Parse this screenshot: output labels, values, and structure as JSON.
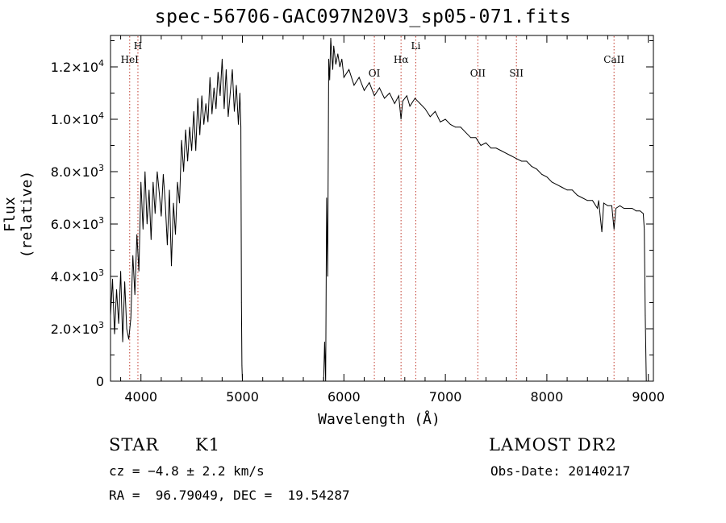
{
  "page": {
    "title": "spec-56706-GAC097N20V3_sp05-071.fits",
    "info": {
      "class_label": "STAR",
      "subclass_label": "K1",
      "survey": "LAMOST DR2",
      "cz": "cz = −4.8 ± 2.2 km/s",
      "obs_date": "Obs-Date: 20140217",
      "coords": "RA =  96.79049, DEC =  19.54287"
    }
  },
  "chart_data": {
    "type": "line",
    "title": "spec-56706-GAC097N20V3_sp05-071.fits",
    "xlabel": "Wavelength (Å)",
    "ylabel": "Flux (relative)",
    "xlim": [
      3700,
      9050
    ],
    "ylim": [
      0,
      13200
    ],
    "xticks": [
      4000,
      5000,
      6000,
      7000,
      8000,
      9000
    ],
    "xtick_labels": [
      "4000",
      "5000",
      "6000",
      "7000",
      "8000",
      "9000"
    ],
    "yticks": [
      0,
      2000,
      4000,
      6000,
      8000,
      10000,
      12000
    ],
    "ytick_labels": [
      {
        "mantissa": "0",
        "exp": ""
      },
      {
        "mantissa": "2.0×10",
        "exp": "3"
      },
      {
        "mantissa": "4.0×10",
        "exp": "3"
      },
      {
        "mantissa": "6.0×10",
        "exp": "3"
      },
      {
        "mantissa": "8.0×10",
        "exp": "3"
      },
      {
        "mantissa": "1.0×10",
        "exp": "4"
      },
      {
        "mantissa": "1.2×10",
        "exp": "4"
      }
    ],
    "line_markers": [
      {
        "label": "HeI",
        "wavelength": 3889,
        "level": 2
      },
      {
        "label": "H",
        "wavelength": 3970,
        "level": 1
      },
      {
        "label": "OI",
        "wavelength": 6300,
        "level": 3
      },
      {
        "label": "Hα",
        "wavelength": 6563,
        "level": 2
      },
      {
        "label": "Li",
        "wavelength": 6708,
        "level": 1
      },
      {
        "label": "OII",
        "wavelength": 7320,
        "level": 3
      },
      {
        "label": "SII",
        "wavelength": 7700,
        "level": 3
      },
      {
        "label": "CaII",
        "wavelength": 8662,
        "level": 2
      }
    ],
    "marker_color": "#c0392b",
    "series": [
      {
        "points": [
          [
            3700,
            2500
          ],
          [
            3720,
            3900
          ],
          [
            3740,
            1800
          ],
          [
            3760,
            3500
          ],
          [
            3780,
            2200
          ],
          [
            3800,
            4200
          ],
          [
            3820,
            1500
          ],
          [
            3840,
            3800
          ],
          [
            3860,
            2000
          ],
          [
            3880,
            1600
          ],
          [
            3900,
            2400
          ],
          [
            3920,
            4800
          ],
          [
            3940,
            3300
          ],
          [
            3960,
            5600
          ],
          [
            3980,
            4200
          ],
          [
            4000,
            7600
          ],
          [
            4020,
            5800
          ],
          [
            4040,
            8000
          ],
          [
            4060,
            6000
          ],
          [
            4080,
            7300
          ],
          [
            4100,
            5400
          ],
          [
            4120,
            7600
          ],
          [
            4140,
            6400
          ],
          [
            4160,
            8000
          ],
          [
            4180,
            7200
          ],
          [
            4200,
            6300
          ],
          [
            4220,
            7900
          ],
          [
            4240,
            6800
          ],
          [
            4260,
            5200
          ],
          [
            4280,
            7300
          ],
          [
            4300,
            4400
          ],
          [
            4320,
            6800
          ],
          [
            4340,
            5600
          ],
          [
            4360,
            7600
          ],
          [
            4380,
            6800
          ],
          [
            4400,
            9200
          ],
          [
            4420,
            8000
          ],
          [
            4440,
            9600
          ],
          [
            4460,
            8400
          ],
          [
            4480,
            9700
          ],
          [
            4500,
            8800
          ],
          [
            4520,
            10300
          ],
          [
            4540,
            8800
          ],
          [
            4560,
            10800
          ],
          [
            4580,
            9400
          ],
          [
            4600,
            10900
          ],
          [
            4620,
            9800
          ],
          [
            4640,
            10600
          ],
          [
            4660,
            9900
          ],
          [
            4680,
            11600
          ],
          [
            4700,
            10200
          ],
          [
            4720,
            11200
          ],
          [
            4740,
            10400
          ],
          [
            4760,
            11800
          ],
          [
            4780,
            10900
          ],
          [
            4800,
            12300
          ],
          [
            4820,
            10400
          ],
          [
            4840,
            11900
          ],
          [
            4860,
            10100
          ],
          [
            4880,
            11000
          ],
          [
            4900,
            11900
          ],
          [
            4920,
            10300
          ],
          [
            4940,
            11300
          ],
          [
            4960,
            9800
          ],
          [
            4975,
            11000
          ],
          [
            4985,
            9700
          ],
          [
            4990,
            3000
          ],
          [
            4995,
            600
          ],
          [
            5000,
            0
          ],
          [
            5800,
            0
          ],
          [
            5810,
            1500
          ],
          [
            5820,
            0
          ],
          [
            5830,
            7000
          ],
          [
            5840,
            4000
          ],
          [
            5850,
            12300
          ],
          [
            5860,
            11500
          ],
          [
            5870,
            13100
          ],
          [
            5880,
            12500
          ],
          [
            5890,
            11900
          ],
          [
            5900,
            12800
          ],
          [
            5920,
            12100
          ],
          [
            5940,
            12500
          ],
          [
            5960,
            12000
          ],
          [
            5980,
            12300
          ],
          [
            6000,
            11600
          ],
          [
            6050,
            11900
          ],
          [
            6100,
            11300
          ],
          [
            6150,
            11600
          ],
          [
            6200,
            11100
          ],
          [
            6250,
            11400
          ],
          [
            6300,
            10900
          ],
          [
            6350,
            11200
          ],
          [
            6400,
            10800
          ],
          [
            6450,
            11000
          ],
          [
            6500,
            10600
          ],
          [
            6540,
            10900
          ],
          [
            6563,
            10000
          ],
          [
            6580,
            10700
          ],
          [
            6620,
            10900
          ],
          [
            6650,
            10500
          ],
          [
            6700,
            10800
          ],
          [
            6750,
            10600
          ],
          [
            6800,
            10400
          ],
          [
            6850,
            10100
          ],
          [
            6900,
            10300
          ],
          [
            6950,
            9900
          ],
          [
            7000,
            10000
          ],
          [
            7050,
            9800
          ],
          [
            7100,
            9700
          ],
          [
            7150,
            9700
          ],
          [
            7200,
            9500
          ],
          [
            7250,
            9300
          ],
          [
            7300,
            9300
          ],
          [
            7350,
            9000
          ],
          [
            7400,
            9100
          ],
          [
            7450,
            8900
          ],
          [
            7500,
            8900
          ],
          [
            7550,
            8800
          ],
          [
            7600,
            8700
          ],
          [
            7650,
            8600
          ],
          [
            7700,
            8500
          ],
          [
            7750,
            8400
          ],
          [
            7800,
            8400
          ],
          [
            7850,
            8200
          ],
          [
            7900,
            8100
          ],
          [
            7950,
            7900
          ],
          [
            8000,
            7800
          ],
          [
            8050,
            7600
          ],
          [
            8100,
            7500
          ],
          [
            8150,
            7400
          ],
          [
            8200,
            7300
          ],
          [
            8250,
            7300
          ],
          [
            8300,
            7100
          ],
          [
            8350,
            7000
          ],
          [
            8400,
            6900
          ],
          [
            8450,
            6900
          ],
          [
            8498,
            6600
          ],
          [
            8510,
            6900
          ],
          [
            8542,
            5700
          ],
          [
            8560,
            6800
          ],
          [
            8600,
            6700
          ],
          [
            8640,
            6700
          ],
          [
            8662,
            5800
          ],
          [
            8680,
            6600
          ],
          [
            8720,
            6700
          ],
          [
            8760,
            6600
          ],
          [
            8800,
            6600
          ],
          [
            8840,
            6600
          ],
          [
            8880,
            6500
          ],
          [
            8920,
            6500
          ],
          [
            8950,
            6400
          ],
          [
            8960,
            5800
          ],
          [
            8970,
            2500
          ],
          [
            8980,
            0
          ]
        ]
      }
    ]
  }
}
